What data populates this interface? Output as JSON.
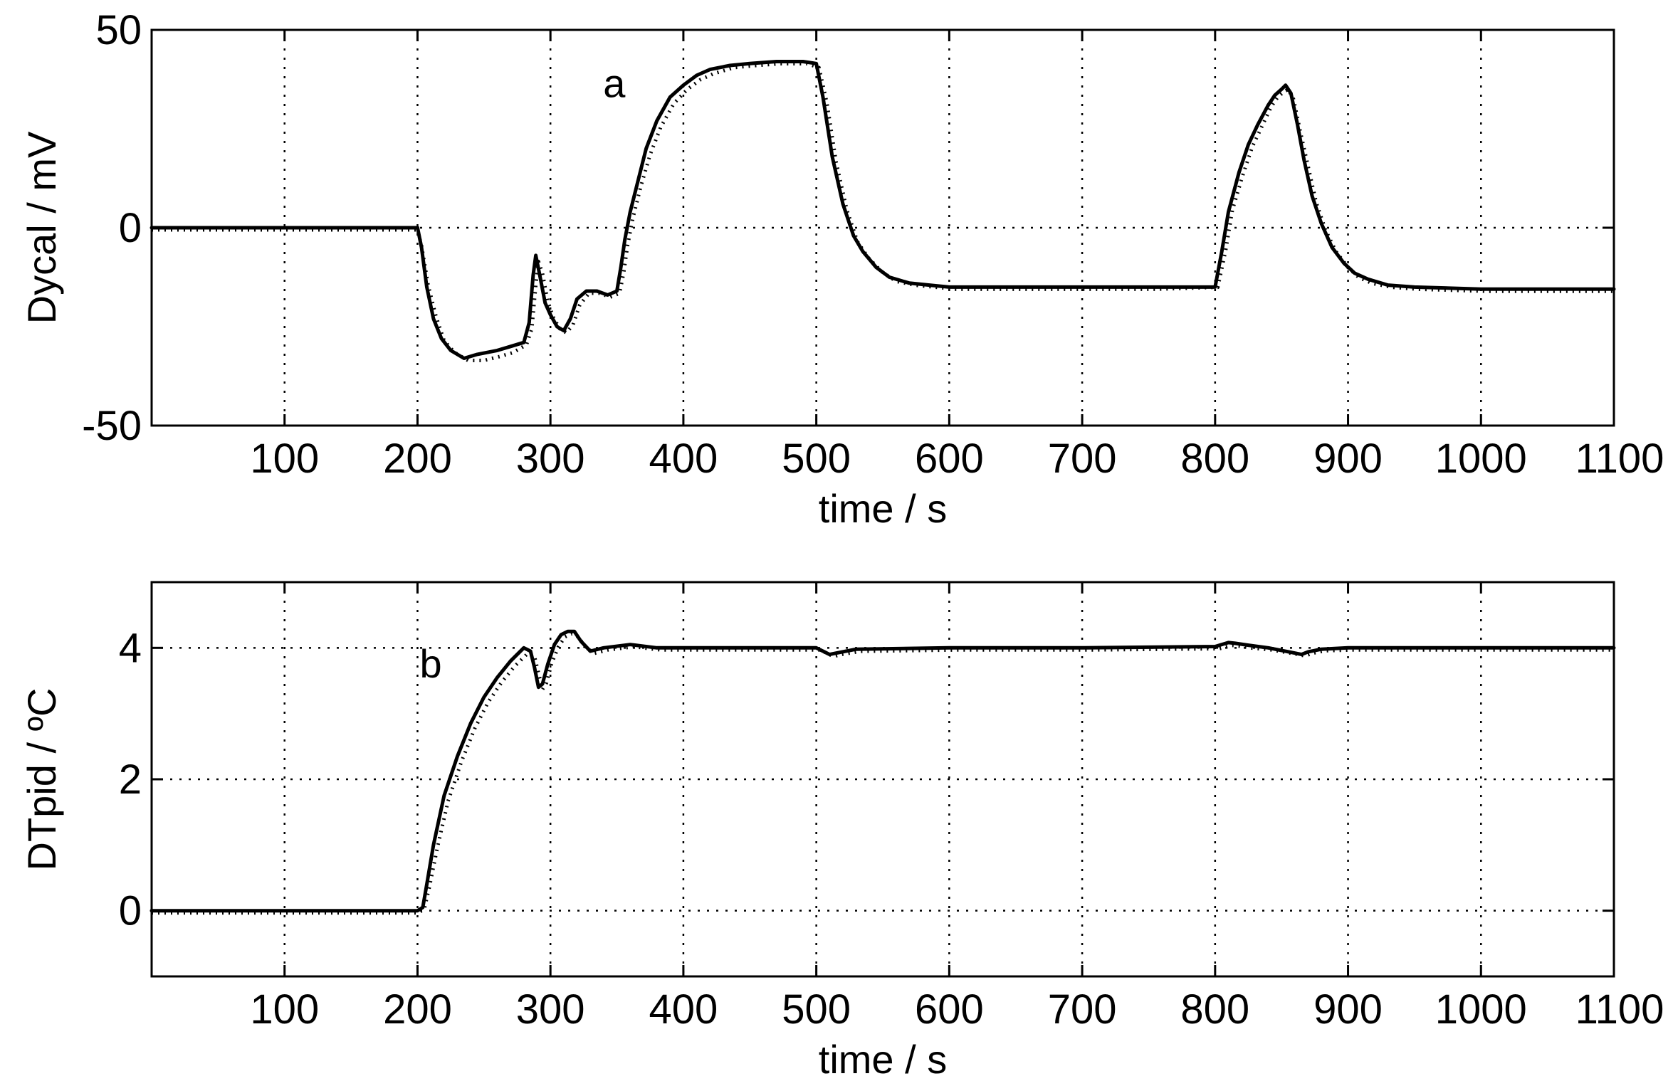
{
  "chart_data": [
    {
      "type": "line",
      "panel_label": "a",
      "xlabel": "time  / s",
      "ylabel": "Dycal / mV",
      "xlim": [
        0,
        1100
      ],
      "ylim": [
        -50,
        50
      ],
      "xticks": [
        100,
        200,
        300,
        400,
        500,
        600,
        700,
        800,
        900,
        1000,
        1100
      ],
      "xtick_labels": [
        "100",
        "200",
        "300",
        "400",
        "500",
        "600",
        "700",
        "800",
        "900",
        "1000",
        "1100"
      ],
      "yticks": [
        -50,
        0,
        50
      ],
      "ytick_labels": [
        "-50",
        "0",
        "50"
      ],
      "grid": true,
      "series": [
        {
          "style": "solid",
          "x": [
            0,
            100,
            200,
            203,
            207,
            212,
            218,
            225,
            235,
            245,
            260,
            270,
            280,
            284,
            287,
            289,
            292,
            296,
            300,
            305,
            310,
            315,
            320,
            327,
            335,
            343,
            350,
            353,
            356,
            360,
            366,
            372,
            380,
            390,
            400,
            410,
            420,
            435,
            450,
            470,
            490,
            500,
            505,
            512,
            520,
            528,
            535,
            545,
            555,
            570,
            585,
            600,
            620,
            650,
            700,
            750,
            800,
            805,
            810,
            818,
            825,
            832,
            840,
            845,
            850,
            853,
            857,
            862,
            867,
            873,
            880,
            888,
            897,
            905,
            915,
            930,
            950,
            1000,
            1050,
            1100
          ],
          "y": [
            0,
            0,
            0,
            -5,
            -15,
            -23,
            -28,
            -31,
            -33,
            -32,
            -31,
            -30,
            -29,
            -24,
            -12,
            -7,
            -12,
            -19,
            -22,
            -25,
            -26,
            -23,
            -18,
            -16,
            -16,
            -17,
            -16,
            -10,
            -3,
            4,
            12,
            20,
            27,
            33,
            36,
            38.5,
            40,
            41,
            41.5,
            42,
            42,
            41.5,
            33,
            18,
            6,
            -2,
            -6,
            -10,
            -12.5,
            -14,
            -14.5,
            -15,
            -15,
            -15,
            -15,
            -15,
            -15,
            -6,
            4,
            14,
            21,
            26,
            31,
            33.5,
            35,
            36,
            34,
            26,
            17,
            8,
            1,
            -5,
            -9,
            -11.5,
            -13,
            -14.5,
            -15,
            -15.5,
            -15.5,
            -15.5
          ]
        },
        {
          "style": "dotted",
          "x": [
            0,
            100,
            200,
            203,
            208,
            214,
            220,
            228,
            238,
            250,
            262,
            272,
            282,
            286,
            289,
            291,
            294,
            298,
            302,
            307,
            312,
            317,
            322,
            329,
            337,
            345,
            352,
            355,
            358,
            362,
            368,
            375,
            383,
            393,
            403,
            413,
            423,
            438,
            453,
            473,
            493,
            502,
            508,
            515,
            523,
            531,
            539,
            549,
            560,
            575,
            590,
            605,
            625,
            655,
            705,
            755,
            802,
            808,
            813,
            821,
            828,
            835,
            842,
            847,
            852,
            855,
            859,
            864,
            870,
            876,
            883,
            891,
            900,
            908,
            918,
            933,
            953,
            1003,
            1053,
            1100
          ],
          "y": [
            0,
            0,
            0,
            -4,
            -14,
            -22,
            -28,
            -31,
            -33,
            -33,
            -32,
            -31,
            -29,
            -25,
            -14,
            -8,
            -11,
            -18,
            -22,
            -25,
            -26,
            -24,
            -19,
            -16,
            -16,
            -17,
            -16,
            -11,
            -4,
            3,
            11,
            19,
            26,
            32,
            35.5,
            38,
            39.5,
            41,
            41.5,
            42,
            42,
            41,
            32,
            17,
            5,
            -3,
            -7,
            -10.5,
            -13,
            -14,
            -14.5,
            -15,
            -15,
            -15,
            -15,
            -15,
            -14.5,
            -5,
            5,
            14,
            21,
            26,
            31,
            33.5,
            35,
            35.5,
            33,
            25,
            16,
            7,
            0,
            -5.5,
            -9.5,
            -12,
            -13.5,
            -14.5,
            -15,
            -15.5,
            -15.5,
            -15.5
          ]
        }
      ]
    },
    {
      "type": "line",
      "panel_label": "b",
      "xlabel": "time  / s",
      "ylabel": "DTpid / ºC",
      "xlim": [
        0,
        1100
      ],
      "ylim": [
        -1,
        5
      ],
      "xticks": [
        100,
        200,
        300,
        400,
        500,
        600,
        700,
        800,
        900,
        1000,
        1100
      ],
      "xtick_labels": [
        "100",
        "200",
        "300",
        "400",
        "500",
        "600",
        "700",
        "800",
        "900",
        "1000",
        "1100"
      ],
      "yticks": [
        0,
        2,
        4
      ],
      "ytick_labels": [
        "0",
        "2",
        "4"
      ],
      "grid": true,
      "series": [
        {
          "style": "solid",
          "x": [
            0,
            100,
            200,
            204,
            207,
            212,
            220,
            230,
            240,
            250,
            260,
            270,
            280,
            285,
            288,
            291,
            294,
            298,
            303,
            308,
            313,
            318,
            323,
            330,
            340,
            360,
            380,
            400,
            450,
            500,
            505,
            510,
            515,
            530,
            600,
            700,
            800,
            810,
            815,
            825,
            840,
            860,
            865,
            870,
            880,
            900,
            1000,
            1100
          ],
          "y": [
            0,
            0,
            0,
            0.05,
            0.4,
            1.0,
            1.75,
            2.35,
            2.85,
            3.25,
            3.55,
            3.8,
            4.0,
            3.95,
            3.7,
            3.4,
            3.45,
            3.75,
            4.05,
            4.2,
            4.25,
            4.25,
            4.1,
            3.95,
            4.0,
            4.05,
            4.0,
            4.0,
            4.0,
            4.0,
            3.95,
            3.9,
            3.92,
            3.98,
            4.0,
            4.0,
            4.02,
            4.08,
            4.07,
            4.04,
            4.0,
            3.92,
            3.9,
            3.94,
            3.98,
            4.0,
            4.0,
            4.0
          ]
        },
        {
          "style": "dotted",
          "x": [
            0,
            100,
            200,
            205,
            209,
            215,
            223,
            233,
            243,
            253,
            263,
            273,
            283,
            288,
            291,
            294,
            297,
            301,
            306,
            311,
            316,
            321,
            326,
            333,
            343,
            363,
            383,
            403,
            453,
            503,
            508,
            513,
            518,
            533,
            603,
            703,
            803,
            813,
            818,
            828,
            843,
            863,
            868,
            873,
            883,
            903,
            1003,
            1100
          ],
          "y": [
            0,
            0,
            0,
            0.05,
            0.4,
            1.0,
            1.7,
            2.3,
            2.8,
            3.2,
            3.5,
            3.75,
            3.95,
            3.9,
            3.65,
            3.4,
            3.5,
            3.8,
            4.05,
            4.2,
            4.25,
            4.2,
            4.05,
            3.95,
            4.0,
            4.05,
            4.0,
            4.0,
            4.0,
            4.0,
            3.95,
            3.9,
            3.93,
            3.98,
            4.0,
            4.0,
            4.02,
            4.07,
            4.06,
            4.03,
            4.0,
            3.93,
            3.91,
            3.95,
            3.99,
            4.0,
            4.0,
            4.0
          ]
        }
      ]
    }
  ]
}
